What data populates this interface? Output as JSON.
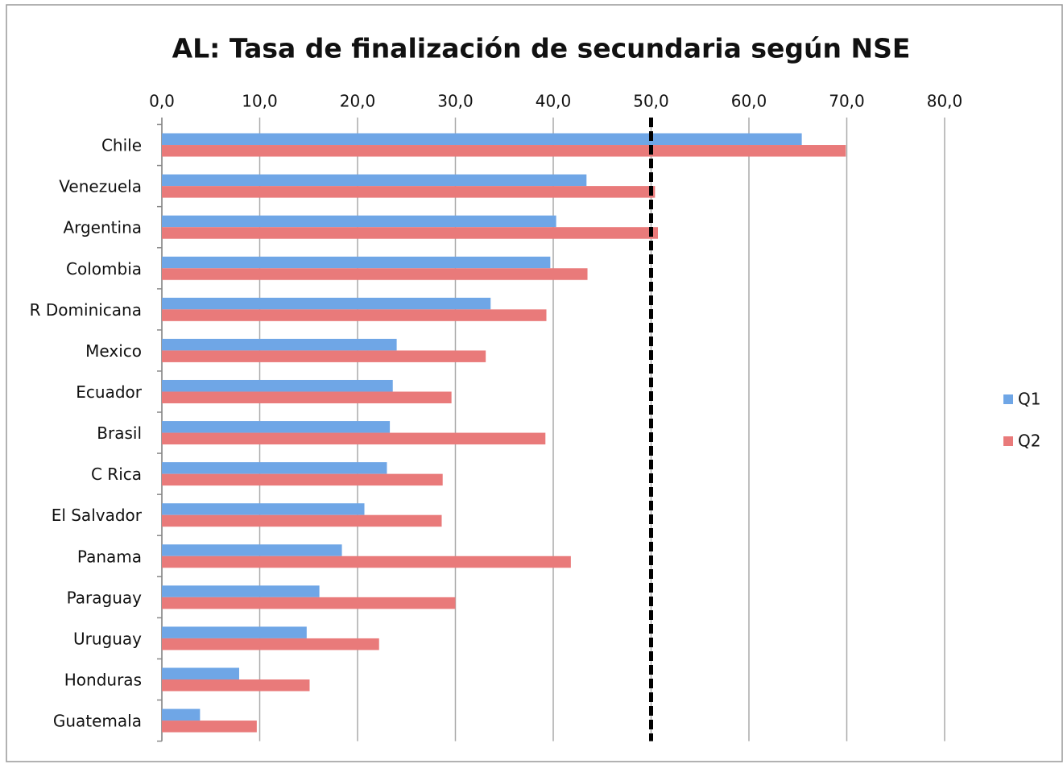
{
  "chart_data": {
    "type": "bar",
    "orientation": "horizontal",
    "title": "AL: Tasa de finalización de secundaria según NSE",
    "categories": [
      "Chile",
      "Venezuela",
      "Argentina",
      "Colombia",
      "R Dominicana",
      "Mexico",
      "Ecuador",
      "Brasil",
      "C Rica",
      "El Salvador",
      "Panama",
      "Paraguay",
      "Uruguay",
      "Honduras",
      "Guatemala"
    ],
    "series": [
      {
        "name": "Q1",
        "color": "#6fa6e6",
        "values": [
          65.4,
          43.4,
          40.3,
          39.7,
          33.6,
          24.0,
          23.6,
          23.3,
          23.0,
          20.7,
          18.4,
          16.1,
          14.8,
          7.9,
          3.9
        ]
      },
      {
        "name": "Q2",
        "color": "#e97a7a",
        "values": [
          69.9,
          50.4,
          50.7,
          43.5,
          39.3,
          33.1,
          29.6,
          39.2,
          28.7,
          28.6,
          41.8,
          30.0,
          22.2,
          15.1,
          9.7
        ]
      }
    ],
    "xlim": [
      0,
      80
    ],
    "xticks": [
      {
        "value": 0,
        "label": "0,0"
      },
      {
        "value": 10,
        "label": "10,0"
      },
      {
        "value": 20,
        "label": "20,0"
      },
      {
        "value": 30,
        "label": "30,0"
      },
      {
        "value": 40,
        "label": "40,0"
      },
      {
        "value": 50,
        "label": "50,0"
      },
      {
        "value": 60,
        "label": "60,0"
      },
      {
        "value": 70,
        "label": "70,0"
      },
      {
        "value": 80,
        "label": "80,0"
      }
    ],
    "grid": true,
    "reference_line": 50,
    "legend": "right"
  }
}
